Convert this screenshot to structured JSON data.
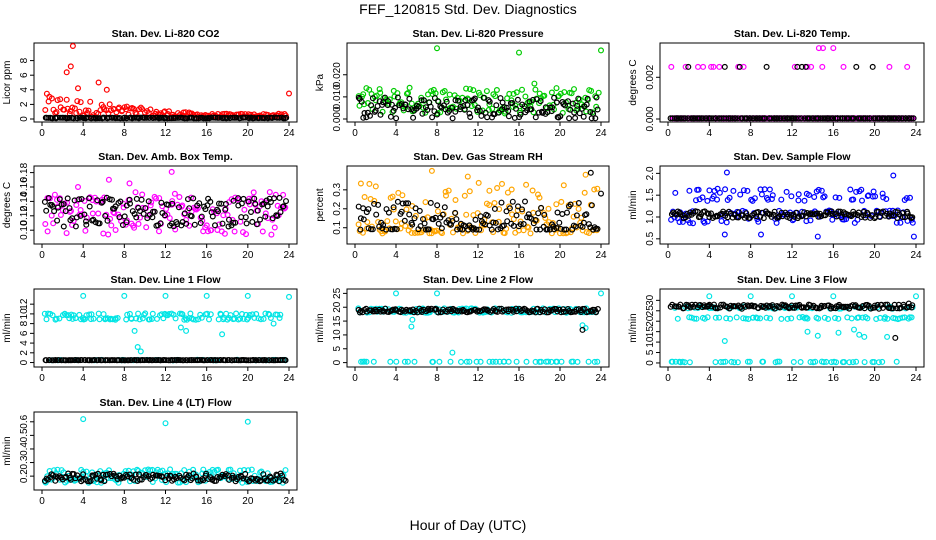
{
  "title": "FEF_120815  Std. Dev. Diagnostics",
  "xlabel": "Hour of Day (UTC)",
  "colors": {
    "red": "#ff0000",
    "green": "#00cc00",
    "magenta": "#ff00ff",
    "orange": "#ffa500",
    "blue": "#0000ff",
    "cyan": "#00e5e5",
    "black": "#000000"
  },
  "chart_data": [
    {
      "type": "scatter",
      "title": "Stan. Dev. Li-820 CO2",
      "ylabel": "Licor ppm",
      "xlim": [
        0,
        24
      ],
      "xticks": [
        "0",
        "4",
        "8",
        "12",
        "16",
        "20",
        "24"
      ],
      "ylim": [
        0,
        10
      ],
      "yticks": [
        "0",
        "2",
        "4",
        "6",
        "8"
      ],
      "series": [
        {
          "color": "#ff0000",
          "pattern": "decay",
          "base": 0.8,
          "spread": 1.0,
          "outliers": [
            [
              3.0,
              10
            ],
            [
              2.8,
              7.2
            ],
            [
              2.4,
              6.4
            ],
            [
              5.5,
              5.0
            ],
            [
              3.5,
              4.2
            ],
            [
              24,
              3.5
            ],
            [
              6.3,
              4.0
            ]
          ]
        },
        {
          "color": "#000000",
          "pattern": "flat",
          "base": 0.15,
          "spread": 0.1,
          "outliers": []
        }
      ]
    },
    {
      "type": "scatter",
      "title": "Stan. Dev. Li-820 Pressure",
      "ylabel": "kPa",
      "xlim": [
        0,
        24
      ],
      "xticks": [
        "0",
        "4",
        "8",
        "12",
        "16",
        "20",
        "24"
      ],
      "ylim": [
        0,
        0.033
      ],
      "yticks": [
        "0.000",
        "0.010",
        "0.020"
      ],
      "series": [
        {
          "color": "#00cc00",
          "pattern": "band",
          "base": 0.0085,
          "spread": 0.006,
          "outliers": [
            [
              8,
              0.032
            ],
            [
              16,
              0.03
            ],
            [
              24,
              0.031
            ],
            [
              17.5,
              0.016
            ]
          ]
        },
        {
          "color": "#000000",
          "pattern": "band",
          "base": 0.005,
          "spread": 0.005,
          "outliers": []
        }
      ]
    },
    {
      "type": "scatter",
      "title": "Stan. Dev. Li-820 Temp.",
      "ylabel": "degrees C",
      "xlim": [
        0,
        24
      ],
      "xticks": [
        "0",
        "4",
        "8",
        "12",
        "16",
        "20",
        "24"
      ],
      "ylim": [
        0,
        0.0035
      ],
      "yticks": [
        "0.000",
        "0.002"
      ],
      "series": [
        {
          "color": "#ff00ff",
          "pattern": "levels",
          "levels": [
            0,
            0.0025
          ],
          "upperFrac": 0.07,
          "outliers": [
            [
              15,
              0.0034
            ],
            [
              16,
              0.0034
            ],
            [
              14.6,
              0.0034
            ]
          ]
        },
        {
          "color": "#000000",
          "pattern": "levels",
          "levels": [
            0,
            0.0025
          ],
          "upperFrac": 0.03,
          "outliers": []
        }
      ]
    },
    {
      "type": "scatter",
      "title": "Stan. Dev. Amb. Box Temp.",
      "ylabel": "degrees C",
      "xlim": [
        0,
        24
      ],
      "xticks": [
        "0",
        "4",
        "8",
        "12",
        "16",
        "20",
        "24"
      ],
      "ylim": [
        0.085,
        0.185
      ],
      "yticks": [
        "0.10",
        "0.12",
        "0.14",
        "0.16",
        "0.18"
      ],
      "series": [
        {
          "color": "#ff00ff",
          "pattern": "band",
          "base": 0.123,
          "spread": 0.03,
          "outliers": [
            [
              6.5,
              0.17
            ],
            [
              12.6,
              0.181
            ],
            [
              3.5,
              0.16
            ],
            [
              8.5,
              0.165
            ]
          ]
        },
        {
          "color": "#000000",
          "pattern": "band",
          "base": 0.125,
          "spread": 0.02,
          "outliers": []
        }
      ]
    },
    {
      "type": "scatter",
      "title": "Stan. Dev. Gas Stream RH",
      "ylabel": "percent",
      "xlim": [
        0,
        24
      ],
      "xticks": [
        "0",
        "4",
        "8",
        "12",
        "16",
        "20",
        "24"
      ],
      "ylim": [
        0.03,
        0.41
      ],
      "yticks": [
        "0.1",
        "0.2",
        "0.3"
      ],
      "series": [
        {
          "color": "#ffa500",
          "pattern": "skew",
          "base": 0.1,
          "spread": 0.28,
          "outliers": [
            [
              7.5,
              0.4
            ],
            [
              11,
              0.37
            ],
            [
              22.5,
              0.38
            ]
          ]
        },
        {
          "color": "#000000",
          "pattern": "skew",
          "base": 0.12,
          "spread": 0.15,
          "outliers": [
            [
              23,
              0.39
            ],
            [
              24,
              0.28
            ]
          ]
        }
      ]
    },
    {
      "type": "scatter",
      "title": "Stan. Dev. Sample Flow",
      "ylabel": "ml/min",
      "xlim": [
        0,
        24
      ],
      "xticks": [
        "0",
        "4",
        "8",
        "12",
        "16",
        "20",
        "24"
      ],
      "ylim": [
        0.45,
        2.1
      ],
      "yticks": [
        "0.5",
        "1.0",
        "1.5",
        "2.0"
      ],
      "series": [
        {
          "color": "#0000ff",
          "pattern": "twoband",
          "base": 1.0,
          "upper": 1.5,
          "spread": 0.15,
          "outliers": [
            [
              5.7,
              2.02
            ],
            [
              21.8,
              1.95
            ],
            [
              23.8,
              0.55
            ],
            [
              14.5,
              0.55
            ],
            [
              9,
              0.6
            ],
            [
              5.5,
              0.6
            ]
          ]
        },
        {
          "color": "#000000",
          "pattern": "band",
          "base": 1.05,
          "spread": 0.08,
          "outliers": []
        }
      ]
    },
    {
      "type": "scatter",
      "title": "Stan. Dev. Line 1 Flow",
      "ylabel": "ml/min",
      "xlim": [
        0,
        24
      ],
      "xticks": [
        "0",
        "4",
        "8",
        "12",
        "16",
        "20",
        "24"
      ],
      "ylim": [
        -0.3,
        14.5
      ],
      "yticks": [
        "0",
        "2",
        "4",
        "6",
        "8",
        "10",
        "12"
      ],
      "series": [
        {
          "color": "#00e5e5",
          "pattern": "twolevel",
          "levels": [
            9.0,
            9.9
          ],
          "low": 0.5,
          "spread": 0.4,
          "outliers": [
            [
              4,
              13.7
            ],
            [
              8,
              13.7
            ],
            [
              12,
              13.7
            ],
            [
              16,
              13.7
            ],
            [
              20,
              13.7
            ],
            [
              24,
              13.5
            ],
            [
              9.3,
              3.2
            ],
            [
              9.6,
              2.3
            ],
            [
              9.0,
              6.5
            ],
            [
              14,
              6.5
            ],
            [
              13.5,
              7.2
            ],
            [
              17.5,
              5.8
            ],
            [
              22.5,
              8
            ]
          ]
        },
        {
          "color": "#000000",
          "pattern": "flat",
          "base": 0.5,
          "spread": 0.05,
          "outliers": []
        }
      ]
    },
    {
      "type": "scatter",
      "title": "Stan. Dev. Line 2 Flow",
      "ylabel": "ml/min",
      "xlim": [
        0,
        24
      ],
      "xticks": [
        "0",
        "4",
        "8",
        "12",
        "16",
        "20",
        "24"
      ],
      "ylim": [
        -0.5,
        25.5
      ],
      "yticks": [
        "0",
        "5",
        "10",
        "15",
        "20",
        "25"
      ],
      "series": [
        {
          "color": "#00e5e5",
          "pattern": "twolevel",
          "levels": [
            18.2,
            19.4
          ],
          "low": 0.3,
          "spread": 0.4,
          "outliers": [
            [
              4,
              25
            ],
            [
              8,
              25
            ],
            [
              24,
              25
            ],
            [
              5.5,
              13
            ],
            [
              5.6,
              15.5
            ],
            [
              9.5,
              3.6
            ],
            [
              22.2,
              13.5
            ],
            [
              22.5,
              12.5
            ]
          ]
        },
        {
          "color": "#000000",
          "pattern": "band",
          "base": 18.8,
          "spread": 0.7,
          "outliers": [
            [
              22.2,
              11.8
            ],
            [
              23.5,
              18.3
            ]
          ]
        }
      ]
    },
    {
      "type": "scatter",
      "title": "Stan. Dev. Line 3 Flow",
      "ylabel": "ml/min",
      "xlim": [
        0,
        24
      ],
      "xticks": [
        "0",
        "4",
        "8",
        "12",
        "16",
        "20",
        "24"
      ],
      "ylim": [
        -0.5,
        34
      ],
      "yticks": [
        "0",
        "5",
        "10",
        "15",
        "20",
        "25",
        "30"
      ],
      "series": [
        {
          "color": "#00e5e5",
          "pattern": "twolevel",
          "levels": [
            21.5,
            26.5
          ],
          "low": 0.5,
          "spread": 1.0,
          "outliers": [
            [
              4,
              32
            ],
            [
              8,
              32
            ],
            [
              12,
              32
            ],
            [
              16,
              32
            ],
            [
              24,
              32
            ],
            [
              5.5,
              10.5
            ],
            [
              13.5,
              15
            ],
            [
              14.5,
              13
            ],
            [
              16.5,
              14.5
            ],
            [
              18,
              16
            ],
            [
              18.5,
              13.5
            ],
            [
              19,
              12.5
            ],
            [
              21.2,
              12.5
            ]
          ]
        },
        {
          "color": "#000000",
          "pattern": "band",
          "base": 27,
          "spread": 1.0,
          "outliers": [
            [
              22,
              12
            ],
            [
              23.3,
              28.5
            ]
          ]
        }
      ]
    },
    {
      "type": "scatter",
      "title": "Stan. Dev. Line 4 (LT) Flow",
      "ylabel": "ml/min",
      "xlim": [
        0,
        24
      ],
      "xticks": [
        "0",
        "4",
        "8",
        "12",
        "16",
        "20",
        "24"
      ],
      "ylim": [
        0.12,
        0.65
      ],
      "yticks": [
        "0.2",
        "0.3",
        "0.4",
        "0.5",
        "0.6"
      ],
      "series": [
        {
          "color": "#00e5e5",
          "pattern": "band",
          "base": 0.2,
          "spread": 0.05,
          "outliers": [
            [
              4,
              0.62
            ],
            [
              12,
              0.59
            ],
            [
              20,
              0.6
            ],
            [
              0.3,
              0.16
            ]
          ]
        },
        {
          "color": "#000000",
          "pattern": "band",
          "base": 0.19,
          "spread": 0.03,
          "outliers": []
        }
      ]
    }
  ]
}
